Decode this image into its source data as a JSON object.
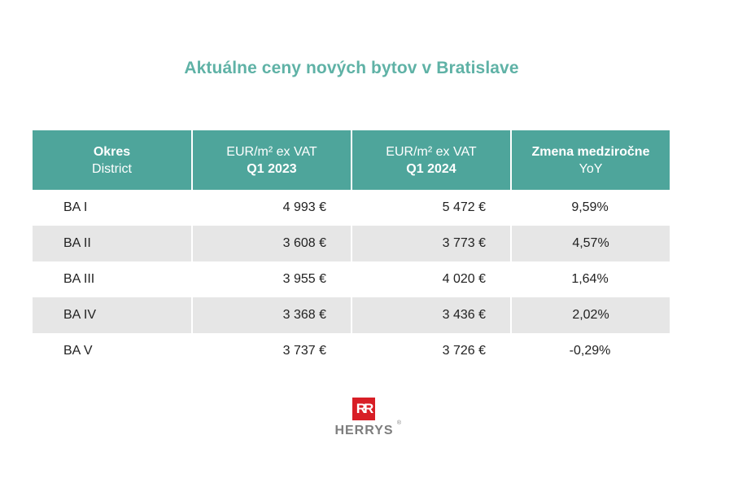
{
  "title": "Aktuálne ceny nových bytov v Bratislave",
  "header": {
    "col1": {
      "line1": "Okres",
      "line2": "District"
    },
    "col2": {
      "line1": "EUR/m² ex VAT",
      "line2": "Q1 2023"
    },
    "col3": {
      "line1": "EUR/m² ex VAT",
      "line2": "Q1 2024"
    },
    "col4": {
      "line1": "Zmena medziročne",
      "line2": "YoY"
    }
  },
  "rows": [
    {
      "district": "BA I",
      "q1_2023": "4 993 €",
      "q1_2024": "5 472 €",
      "yoy": "9,59%"
    },
    {
      "district": "BA II",
      "q1_2023": "3 608 €",
      "q1_2024": "3 773 €",
      "yoy": "4,57%"
    },
    {
      "district": "BA III",
      "q1_2023": "3 955 €",
      "q1_2024": "4 020 €",
      "yoy": "1,64%"
    },
    {
      "district": "BA IV",
      "q1_2023": "3 368 €",
      "q1_2024": "3 436 €",
      "yoy": "2,02%"
    },
    {
      "district": "BA V",
      "q1_2023": "3 737 €",
      "q1_2024": "3 726 €",
      "yoy": "-0,29%"
    }
  ],
  "logo": {
    "mark": "RR",
    "text": "HERRYS",
    "reg": "®"
  },
  "colors": {
    "accent": "#4ea59b",
    "title": "#5fb2a6",
    "row_shade": "#e6e6e6",
    "logo_red": "#d81e26"
  }
}
